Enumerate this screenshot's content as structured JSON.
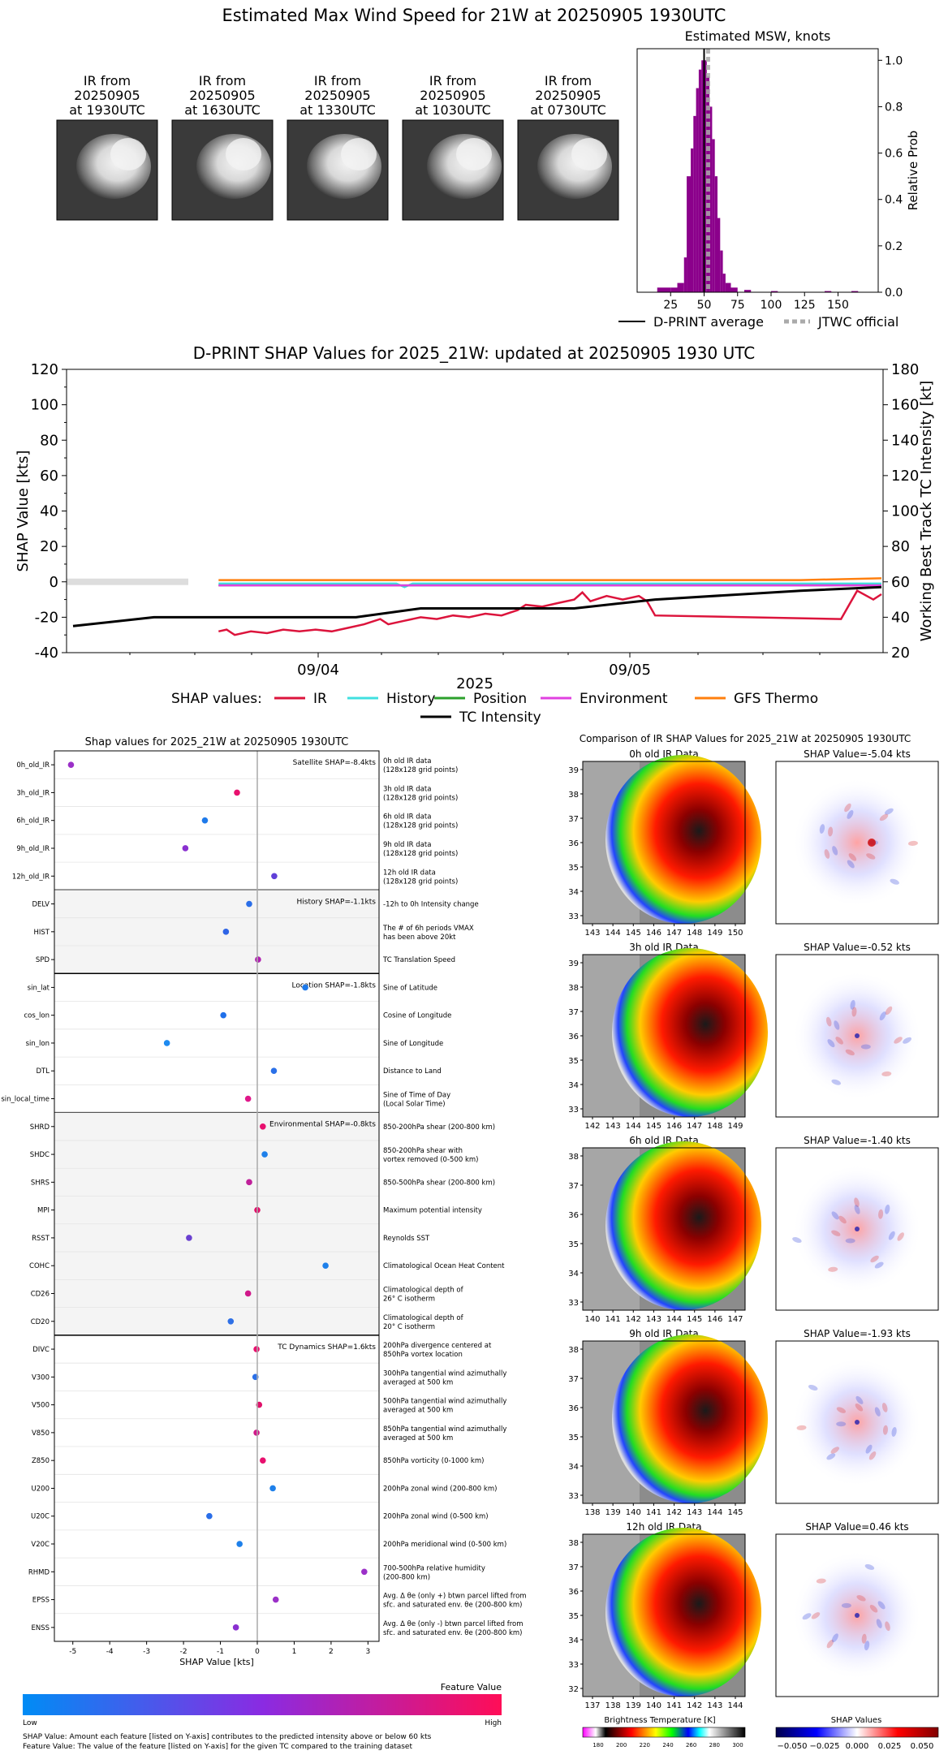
{
  "page_title": "Estimated Max Wind Speed for 21W at 20250905 1930UTC",
  "ir_thumbnails": [
    {
      "line1": "IR from",
      "line2": "20250905",
      "line3": "at 1930UTC"
    },
    {
      "line1": "IR from",
      "line2": "20250905",
      "line3": "at 1630UTC"
    },
    {
      "line1": "IR from",
      "line2": "20250905",
      "line3": "at 1330UTC"
    },
    {
      "line1": "IR from",
      "line2": "20250905",
      "line3": "at 1030UTC"
    },
    {
      "line1": "IR from",
      "line2": "20250905",
      "line3": "at 0730UTC"
    }
  ],
  "chart_data": [
    {
      "type": "bar",
      "title": "Estimated MSW, knots",
      "ylabel": "Relative Prob",
      "xlim": [
        0,
        180
      ],
      "ylim": [
        0,
        1.05
      ],
      "xticks": [
        "25",
        "50",
        "75",
        "100",
        "125",
        "150"
      ],
      "yticks": [
        "0.0",
        "0.2",
        "0.4",
        "0.6",
        "0.8",
        "1.0"
      ],
      "bar_color": "#8b008b",
      "bins": [
        [
          15,
          0.02
        ],
        [
          20,
          0.02
        ],
        [
          25,
          0.02
        ],
        [
          30,
          0.04
        ],
        [
          35,
          0.15
        ],
        [
          37,
          0.5
        ],
        [
          40,
          0.62
        ],
        [
          42,
          0.76
        ],
        [
          44,
          0.88
        ],
        [
          46,
          0.96
        ],
        [
          48,
          1.0
        ],
        [
          50,
          1.0
        ],
        [
          52,
          0.93
        ],
        [
          54,
          0.8
        ],
        [
          56,
          0.66
        ],
        [
          58,
          0.5
        ],
        [
          60,
          0.32
        ],
        [
          62,
          0.18
        ],
        [
          64,
          0.08
        ],
        [
          66,
          0.04
        ],
        [
          70,
          0.02
        ],
        [
          80,
          0.01
        ],
        [
          100,
          0.005
        ],
        [
          140,
          0.005
        ],
        [
          160,
          0.005
        ]
      ],
      "dprint_average": 50,
      "jtwc_official": 53,
      "legend": [
        "D-PRINT average",
        "JTWC official"
      ]
    },
    {
      "type": "line",
      "title": "D-PRINT SHAP Values for 2025_21W: updated at 20250905 1930 UTC",
      "ylabel": "SHAP Value [kts]",
      "y2label": "Working Best Track TC Intensity [kt]",
      "xlabel": "2025",
      "ylim": [
        -40,
        120
      ],
      "y2lim": [
        20,
        180
      ],
      "yticks": [
        "-40",
        "-20",
        "0",
        "20",
        "40",
        "60",
        "80",
        "100",
        "120"
      ],
      "y2ticks": [
        "20",
        "40",
        "60",
        "80",
        "100",
        "120",
        "140",
        "160",
        "180"
      ],
      "xticks": [
        "09/04",
        "09/05"
      ],
      "legend_prefix": "SHAP values:",
      "series": [
        {
          "name": "IR",
          "color": "#dc143c",
          "values": [
            [
              0.18,
              -28
            ],
            [
              0.19,
              -27
            ],
            [
              0.2,
              -30
            ],
            [
              0.22,
              -28
            ],
            [
              0.24,
              -29
            ],
            [
              0.26,
              -27
            ],
            [
              0.28,
              -28
            ],
            [
              0.3,
              -27
            ],
            [
              0.32,
              -28
            ],
            [
              0.34,
              -26
            ],
            [
              0.36,
              -24
            ],
            [
              0.38,
              -21
            ],
            [
              0.39,
              -24
            ],
            [
              0.41,
              -22
            ],
            [
              0.43,
              -20
            ],
            [
              0.45,
              -21
            ],
            [
              0.47,
              -19
            ],
            [
              0.49,
              -20
            ],
            [
              0.51,
              -18
            ],
            [
              0.53,
              -19
            ],
            [
              0.55,
              -16
            ],
            [
              0.56,
              -13
            ],
            [
              0.58,
              -14
            ],
            [
              0.6,
              -12
            ],
            [
              0.62,
              -10
            ],
            [
              0.63,
              -6
            ],
            [
              0.64,
              -11
            ],
            [
              0.66,
              -8
            ],
            [
              0.68,
              -10
            ],
            [
              0.7,
              -8
            ],
            [
              0.71,
              -11
            ],
            [
              0.72,
              -19
            ],
            [
              0.95,
              -21
            ],
            [
              0.97,
              -5
            ],
            [
              0.99,
              -10
            ],
            [
              1.0,
              -7
            ]
          ]
        },
        {
          "name": "History",
          "color": "#40e0e0",
          "values": [
            [
              0.18,
              -1
            ],
            [
              0.4,
              -1
            ],
            [
              0.41,
              -3
            ],
            [
              0.42,
              -1
            ],
            [
              1.0,
              -1
            ]
          ]
        },
        {
          "name": "Position",
          "color": "#2ca02c",
          "values": [
            [
              0.18,
              -2
            ],
            [
              1.0,
              -2
            ]
          ]
        },
        {
          "name": "Environment",
          "color": "#e040e0",
          "values": [
            [
              0.18,
              -2
            ],
            [
              1.0,
              -2
            ]
          ]
        },
        {
          "name": "GFS Thermo",
          "color": "#ff7f0e",
          "values": [
            [
              0.18,
              1
            ],
            [
              0.5,
              1
            ],
            [
              0.9,
              1
            ],
            [
              1.0,
              2
            ]
          ]
        },
        {
          "name": "TC Intensity",
          "color": "#000000",
          "values": [
            [
              0.0,
              35
            ],
            [
              0.1,
              40
            ],
            [
              0.35,
              40
            ],
            [
              0.43,
              45
            ],
            [
              0.62,
              45
            ],
            [
              0.72,
              50
            ],
            [
              0.9,
              55
            ],
            [
              1.0,
              57
            ]
          ]
        }
      ]
    },
    {
      "type": "scatter",
      "title": "Shap values for 2025_21W at 20250905 1930UTC",
      "xlabel": "SHAP Value [kts]",
      "xlim": [
        -5.5,
        3.3
      ],
      "xticks": [
        "-5",
        "-4",
        "-3",
        "-2",
        "-1",
        "0",
        "1",
        "2",
        "3"
      ],
      "groups": [
        {
          "label": "Satellite SHAP=-8.4kts",
          "shaded": false,
          "features": [
            {
              "name": "0h_old_IR",
              "value": -5.05,
              "color": "#9b30c8",
              "desc1": "0h old IR data",
              "desc2": "(128x128 grid points)"
            },
            {
              "name": "3h_old_IR",
              "value": -0.55,
              "color": "#e8106e",
              "desc1": "3h old IR data",
              "desc2": "(128x128 grid points)"
            },
            {
              "name": "6h_old_IR",
              "value": -1.42,
              "color": "#1e7aea",
              "desc1": "6h old IR data",
              "desc2": "(128x128 grid points)"
            },
            {
              "name": "9h_old_IR",
              "value": -1.95,
              "color": "#8a30d0",
              "desc1": "9h old IR data",
              "desc2": "(128x128 grid points)"
            },
            {
              "name": "12h_old_IR",
              "value": 0.46,
              "color": "#6040d8",
              "desc1": "12h old IR data",
              "desc2": "(128x128 grid points)"
            }
          ]
        },
        {
          "label": "History SHAP=-1.1kts",
          "shaded": true,
          "features": [
            {
              "name": "DELV",
              "value": -0.22,
              "color": "#2a6ee8",
              "desc1": "-12h to 0h Intensity change",
              "desc2": ""
            },
            {
              "name": "HIST",
              "value": -0.85,
              "color": "#2e64e6",
              "desc1": "The # of 6h periods VMAX",
              "desc2": "has been above 20kt"
            },
            {
              "name": "SPD",
              "value": 0.02,
              "color": "#b020b0",
              "desc1": "TC Translation Speed",
              "desc2": ""
            }
          ]
        },
        {
          "label": "Location SHAP=-1.8kts",
          "shaded": false,
          "features": [
            {
              "name": "sin_lat",
              "value": 1.3,
              "color": "#1e7aea",
              "desc1": "Sine of Latitude",
              "desc2": ""
            },
            {
              "name": "cos_lon",
              "value": -0.92,
              "color": "#2070ea",
              "desc1": "Cosine of Longitude",
              "desc2": ""
            },
            {
              "name": "sin_lon",
              "value": -2.45,
              "color": "#1e8af0",
              "desc1": "Sine of Longitude",
              "desc2": ""
            },
            {
              "name": "DTL",
              "value": 0.45,
              "color": "#2a70e8",
              "desc1": "Distance to Land",
              "desc2": ""
            },
            {
              "name": "sin_local_time",
              "value": -0.25,
              "color": "#e0188a",
              "desc1": "Sine of Time of Day",
              "desc2": "(Local Solar Time)"
            }
          ]
        },
        {
          "label": "Environmental SHAP=-0.8kts",
          "shaded": true,
          "features": [
            {
              "name": "SHRD",
              "value": 0.15,
              "color": "#e8106e",
              "desc1": "850-200hPa shear (200-800 km)",
              "desc2": ""
            },
            {
              "name": "SHDC",
              "value": 0.2,
              "color": "#1e80ea",
              "desc1": "850-200hPa shear with",
              "desc2": "vortex removed (0-500 km)"
            },
            {
              "name": "SHRS",
              "value": -0.22,
              "color": "#c0209a",
              "desc1": "850-500hPa shear (200-800 km)",
              "desc2": ""
            },
            {
              "name": "MPI",
              "value": 0.0,
              "color": "#e0106a",
              "desc1": "Maximum potential intensity",
              "desc2": ""
            },
            {
              "name": "RSST",
              "value": -1.85,
              "color": "#6a40d0",
              "desc1": "Reynolds SST",
              "desc2": ""
            },
            {
              "name": "COHC",
              "value": 1.85,
              "color": "#1e80ea",
              "desc1": "Climatological Ocean Heat Content",
              "desc2": ""
            },
            {
              "name": "CD26",
              "value": -0.25,
              "color": "#d0188a",
              "desc1": "Climatological depth of",
              "desc2": "26° C isotherm"
            },
            {
              "name": "CD20",
              "value": -0.72,
              "color": "#2e70e6",
              "desc1": "Climatological depth of",
              "desc2": "20° C isotherm"
            }
          ]
        },
        {
          "label": "TC Dynamics SHAP=1.6kts",
          "shaded": false,
          "features": [
            {
              "name": "DIVC",
              "value": -0.02,
              "color": "#e8106e",
              "desc1": "200hPa divergence centered at",
              "desc2": "850hPa vortex location"
            },
            {
              "name": "V300",
              "value": -0.05,
              "color": "#2a70e8",
              "desc1": "300hPa tangential wind azimuthally",
              "desc2": "averaged at 500 km"
            },
            {
              "name": "V500",
              "value": 0.05,
              "color": "#e0106a",
              "desc1": "500hPa tangential wind azimuthally",
              "desc2": "averaged at 500 km"
            },
            {
              "name": "V850",
              "value": -0.02,
              "color": "#d0188a",
              "desc1": "850hPa tangential wind azimuthally",
              "desc2": "averaged at 500 km"
            },
            {
              "name": "Z850",
              "value": 0.15,
              "color": "#e8106e",
              "desc1": "850hPa vorticity (0-1000 km)",
              "desc2": ""
            },
            {
              "name": "U200",
              "value": 0.42,
              "color": "#1e80ea",
              "desc1": "200hPa zonal wind (200-800 km)",
              "desc2": ""
            },
            {
              "name": "U20C",
              "value": -1.3,
              "color": "#2a6ee8",
              "desc1": "200hPa zonal wind (0-500 km)",
              "desc2": ""
            },
            {
              "name": "V20C",
              "value": -0.48,
              "color": "#1e80ea",
              "desc1": "200hPa meridional wind (0-500 km)",
              "desc2": ""
            },
            {
              "name": "RHMD",
              "value": 2.9,
              "color": "#9b30c8",
              "desc1": "700-500hPa relative humidity",
              "desc2": "(200-800 km)"
            },
            {
              "name": "EPSS",
              "value": 0.5,
              "color": "#9b30c8",
              "desc1": "Avg. Δ θe (only +) btwn parcel lifted from",
              "desc2": "sfc. and saturated env. θe (200-800 km)"
            },
            {
              "name": "ENSS",
              "value": -0.58,
              "color": "#8a30d0",
              "desc1": "Avg. Δ θe (only -) btwn parcel lifted from",
              "desc2": "sfc. and saturated env. θe (200-800 km)"
            }
          ]
        }
      ]
    }
  ],
  "feature_colorbar": {
    "title": "Feature Value",
    "low": "Low",
    "high": "High"
  },
  "footnote": {
    "line1": "SHAP Value: Amount each feature [listed on Y-axis] contributes to the predicted intensity above or below 60 kts",
    "line2": "Feature Value: The value of the feature [listed on Y-axis] for the given TC compared to the training dataset"
  },
  "comparison": {
    "title": "Comparison of IR SHAP Values for 2025_21W at 20250905 1930UTC",
    "rows": [
      {
        "ir_title": "0h old IR Data",
        "shap_title": "SHAP Value=-5.04 kts",
        "xticks": [
          "143",
          "144",
          "145",
          "146",
          "147",
          "148",
          "149",
          "150"
        ],
        "yticks": [
          "39",
          "38",
          "37",
          "36",
          "35",
          "34",
          "33"
        ]
      },
      {
        "ir_title": "3h old IR Data",
        "shap_title": "SHAP Value=-0.52 kts",
        "xticks": [
          "142",
          "143",
          "144",
          "145",
          "146",
          "147",
          "148",
          "149"
        ],
        "yticks": [
          "39",
          "38",
          "37",
          "36",
          "35",
          "34",
          "33"
        ]
      },
      {
        "ir_title": "6h old IR Data",
        "shap_title": "SHAP Value=-1.40 kts",
        "xticks": [
          "140",
          "141",
          "142",
          "143",
          "144",
          "145",
          "146",
          "147"
        ],
        "yticks": [
          "38",
          "37",
          "36",
          "35",
          "34",
          "33"
        ]
      },
      {
        "ir_title": "9h old IR Data",
        "shap_title": "SHAP Value=-1.93 kts",
        "xticks": [
          "138",
          "139",
          "140",
          "141",
          "142",
          "143",
          "144",
          "145"
        ],
        "yticks": [
          "38",
          "37",
          "36",
          "35",
          "34",
          "33"
        ]
      },
      {
        "ir_title": "12h old IR Data",
        "shap_title": "SHAP Value=0.46 kts",
        "xticks": [
          "137",
          "138",
          "139",
          "140",
          "141",
          "142",
          "143",
          "144"
        ],
        "yticks": [
          "38",
          "37",
          "36",
          "35",
          "34",
          "33",
          "32"
        ]
      }
    ],
    "bt_colorbar": {
      "label": "Brightness Temperature [K]",
      "ticks": [
        "180",
        "200",
        "220",
        "240",
        "260",
        "280",
        "300"
      ]
    },
    "shap_colorbar": {
      "label": "SHAP Values",
      "ticks": [
        "−0.050",
        "−0.025",
        "0.000",
        "0.025",
        "0.050"
      ]
    }
  }
}
